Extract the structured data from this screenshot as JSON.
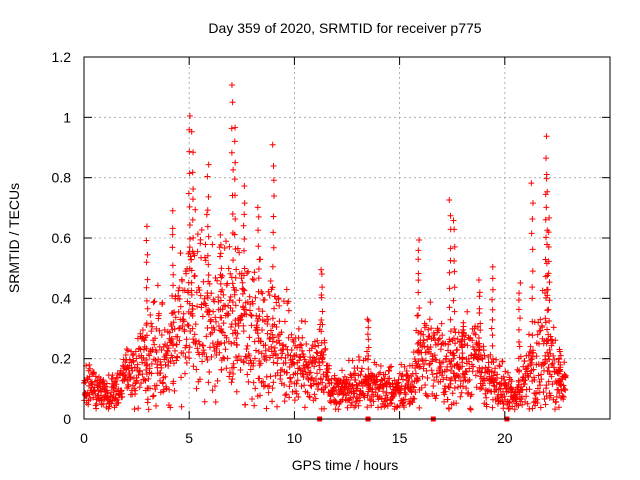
{
  "chart_data": {
    "type": "scatter",
    "title": "Day 359 of 2020, SRMTID for receiver p775",
    "xlabel": "GPS time / hours",
    "ylabel": "SRMTID / TECUs",
    "xlim": [
      0,
      25
    ],
    "ylim": [
      0,
      1.2
    ],
    "xticks": [
      0,
      5,
      10,
      15,
      20
    ],
    "xtick_labels": [
      "0",
      "5",
      "10",
      "15",
      "20"
    ],
    "yticks": [
      0,
      0.2,
      0.4,
      0.6,
      0.8,
      1.0,
      1.2
    ],
    "ytick_labels": [
      "0",
      "0.2",
      "0.4",
      "0.6",
      "0.8",
      "1",
      "1.2"
    ],
    "grid": true,
    "marker": "+",
    "color": "#ff0000",
    "gap_markers_x": [
      11.2,
      13.5,
      16.6,
      20.1
    ],
    "envelope": {
      "x": [
        0.0,
        0.5,
        1.0,
        1.5,
        2.0,
        2.5,
        3.0,
        3.5,
        4.0,
        4.5,
        5.0,
        5.5,
        6.0,
        6.5,
        7.0,
        7.5,
        8.0,
        8.5,
        9.0,
        9.5,
        10.0,
        10.5,
        11.0,
        11.3,
        11.6,
        12.0,
        12.5,
        13.0,
        13.5,
        14.0,
        14.5,
        15.0,
        15.5,
        16.0,
        16.5,
        17.0,
        17.5,
        18.0,
        18.5,
        19.0,
        19.5,
        20.0,
        20.5,
        21.0,
        21.5,
        22.0,
        22.5,
        22.9
      ],
      "center": [
        0.11,
        0.1,
        0.08,
        0.09,
        0.14,
        0.16,
        0.2,
        0.24,
        0.22,
        0.26,
        0.32,
        0.36,
        0.3,
        0.28,
        0.32,
        0.3,
        0.27,
        0.24,
        0.26,
        0.22,
        0.18,
        0.17,
        0.16,
        0.2,
        0.12,
        0.1,
        0.09,
        0.12,
        0.11,
        0.1,
        0.1,
        0.09,
        0.12,
        0.2,
        0.22,
        0.18,
        0.16,
        0.18,
        0.2,
        0.15,
        0.12,
        0.1,
        0.08,
        0.14,
        0.18,
        0.2,
        0.12,
        0.1
      ],
      "spread": [
        0.05,
        0.05,
        0.04,
        0.05,
        0.07,
        0.09,
        0.12,
        0.14,
        0.14,
        0.17,
        0.2,
        0.2,
        0.18,
        0.17,
        0.2,
        0.18,
        0.17,
        0.15,
        0.16,
        0.13,
        0.1,
        0.1,
        0.09,
        0.12,
        0.06,
        0.05,
        0.05,
        0.07,
        0.06,
        0.05,
        0.05,
        0.05,
        0.07,
        0.1,
        0.11,
        0.09,
        0.08,
        0.1,
        0.12,
        0.08,
        0.06,
        0.05,
        0.04,
        0.08,
        0.12,
        0.14,
        0.08,
        0.05
      ]
    },
    "peaks": [
      {
        "x": 3.0,
        "y": 0.63
      },
      {
        "x": 4.2,
        "y": 0.68
      },
      {
        "x": 5.0,
        "y": 1.01
      },
      {
        "x": 5.15,
        "y": 0.94
      },
      {
        "x": 5.9,
        "y": 0.84
      },
      {
        "x": 6.5,
        "y": 0.62
      },
      {
        "x": 7.05,
        "y": 1.11
      },
      {
        "x": 7.2,
        "y": 0.97
      },
      {
        "x": 7.6,
        "y": 0.77
      },
      {
        "x": 8.3,
        "y": 0.7
      },
      {
        "x": 9.0,
        "y": 0.91
      },
      {
        "x": 11.3,
        "y": 0.5
      },
      {
        "x": 13.5,
        "y": 0.34
      },
      {
        "x": 15.9,
        "y": 0.6
      },
      {
        "x": 17.4,
        "y": 0.73
      },
      {
        "x": 17.6,
        "y": 0.67
      },
      {
        "x": 18.0,
        "y": 0.33
      },
      {
        "x": 18.8,
        "y": 0.45
      },
      {
        "x": 19.4,
        "y": 0.51
      },
      {
        "x": 20.7,
        "y": 0.45
      },
      {
        "x": 21.3,
        "y": 0.78
      },
      {
        "x": 21.95,
        "y": 0.94
      },
      {
        "x": 22.0,
        "y": 0.8
      },
      {
        "x": 22.1,
        "y": 0.66
      },
      {
        "x": 22.6,
        "y": 0.23
      }
    ]
  }
}
